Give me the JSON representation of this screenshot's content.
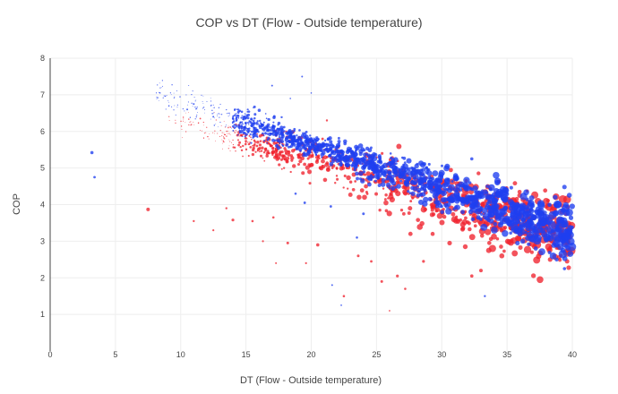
{
  "chart_data": {
    "type": "scatter",
    "title": "COP vs DT (Flow - Outside temperature)",
    "xlabel": "DT (Flow - Outside temperature)",
    "ylabel": "COP",
    "xlim": [
      0,
      40
    ],
    "ylim": [
      0,
      8
    ],
    "xticks": [
      0,
      5,
      10,
      15,
      20,
      25,
      30,
      35,
      40
    ],
    "yticks": [
      1,
      2,
      3,
      4,
      5,
      6,
      7,
      8
    ],
    "grid": true,
    "series": [
      {
        "name": "blue",
        "color": "#1f3ff0",
        "trend": {
          "slope": -0.118,
          "intercept": 8.0
        },
        "points": [
          [
            3.2,
            5.42,
            1.8
          ],
          [
            3.4,
            4.75,
            1.4
          ],
          [
            17.0,
            7.25,
            1.0
          ],
          [
            19.3,
            7.5,
            1.0
          ],
          [
            20.0,
            7.05,
            0.8
          ],
          [
            32.3,
            5.25,
            1.8
          ],
          [
            23.5,
            3.1,
            1.3
          ],
          [
            33.3,
            1.5,
            1.2
          ],
          [
            21.6,
            1.8,
            1.0
          ],
          [
            22.3,
            1.25,
            0.9
          ],
          [
            10.5,
            6.6,
            1.0
          ],
          [
            11.0,
            6.75,
            1.0
          ],
          [
            12.5,
            6.4,
            1.0
          ],
          [
            14.0,
            6.25,
            1.2
          ],
          [
            15.2,
            6.45,
            1.5
          ],
          [
            16.1,
            6.15,
            1.3
          ],
          [
            18.4,
            6.9,
            0.8
          ],
          [
            15.6,
            5.9,
            2.0
          ],
          [
            17.5,
            5.55,
            2.2
          ],
          [
            20.4,
            5.45,
            2.3
          ],
          [
            22.0,
            5.2,
            2.5
          ],
          [
            23.8,
            4.85,
            2.6
          ],
          [
            24.5,
            4.7,
            2.4
          ],
          [
            25.5,
            4.55,
            2.8
          ],
          [
            26.7,
            4.5,
            2.7
          ],
          [
            27.8,
            4.3,
            2.6
          ],
          [
            29.1,
            4.15,
            2.5
          ],
          [
            30.4,
            3.95,
            2.5
          ],
          [
            31.6,
            3.8,
            2.4
          ],
          [
            32.8,
            3.65,
            2.5
          ],
          [
            33.8,
            3.55,
            2.8
          ],
          [
            34.5,
            3.45,
            3.0
          ],
          [
            35.2,
            3.5,
            3.2
          ],
          [
            36.6,
            3.35,
            3.0
          ],
          [
            37.4,
            3.45,
            2.8
          ],
          [
            38.3,
            3.2,
            3.0
          ],
          [
            39.1,
            3.05,
            3.0
          ],
          [
            39.8,
            3.3,
            3.2
          ],
          [
            39.4,
            2.25,
            1.8
          ],
          [
            35.8,
            2.95,
            2.6
          ],
          [
            37.2,
            2.8,
            2.4
          ],
          [
            38.8,
            2.5,
            2.2
          ],
          [
            18.8,
            4.3,
            1.3
          ],
          [
            19.5,
            4.05,
            1.4
          ],
          [
            21.5,
            3.95,
            1.4
          ],
          [
            24.0,
            3.75,
            1.5
          ],
          [
            36.2,
            3.0,
            2.8
          ]
        ]
      },
      {
        "name": "red",
        "color": "#f0222e",
        "trend": {
          "slope": -0.105,
          "intercept": 7.35
        },
        "points": [
          [
            7.5,
            3.87,
            2.0
          ],
          [
            11.0,
            3.55,
            1.2
          ],
          [
            14.0,
            3.58,
            1.6
          ],
          [
            15.5,
            3.55,
            1.3
          ],
          [
            17.1,
            3.65,
            1.3
          ],
          [
            12.5,
            3.3,
            1.1
          ],
          [
            16.3,
            3.0,
            1.1
          ],
          [
            18.2,
            2.95,
            1.5
          ],
          [
            20.5,
            2.9,
            1.8
          ],
          [
            21.2,
            6.3,
            1.2
          ],
          [
            11.5,
            6.35,
            0.9
          ],
          [
            13.5,
            3.9,
            1.2
          ],
          [
            29.3,
            3.2,
            2.3
          ],
          [
            30.6,
            2.95,
            2.6
          ],
          [
            31.8,
            2.85,
            2.7
          ],
          [
            33.6,
            2.75,
            3.0
          ],
          [
            34.6,
            2.6,
            2.8
          ],
          [
            35.3,
            2.95,
            3.1
          ],
          [
            37.1,
            2.85,
            2.9
          ],
          [
            38.3,
            2.5,
            2.6
          ],
          [
            39.6,
            2.45,
            2.5
          ],
          [
            33.0,
            2.2,
            2.0
          ],
          [
            32.3,
            2.05,
            1.8
          ],
          [
            28.6,
            2.45,
            1.6
          ],
          [
            26.6,
            2.05,
            1.6
          ],
          [
            25.4,
            1.9,
            1.5
          ],
          [
            26.0,
            1.1,
            0.9
          ],
          [
            27.2,
            1.7,
            1.3
          ],
          [
            23.6,
            2.6,
            1.5
          ],
          [
            24.6,
            2.45,
            1.4
          ],
          [
            22.5,
            1.5,
            1.3
          ],
          [
            27.6,
            3.2,
            2.4
          ],
          [
            36.4,
            3.2,
            2.7
          ],
          [
            38.9,
            2.85,
            2.4
          ],
          [
            19.6,
            2.4,
            1.1
          ],
          [
            17.3,
            2.4,
            1.0
          ]
        ]
      }
    ]
  }
}
